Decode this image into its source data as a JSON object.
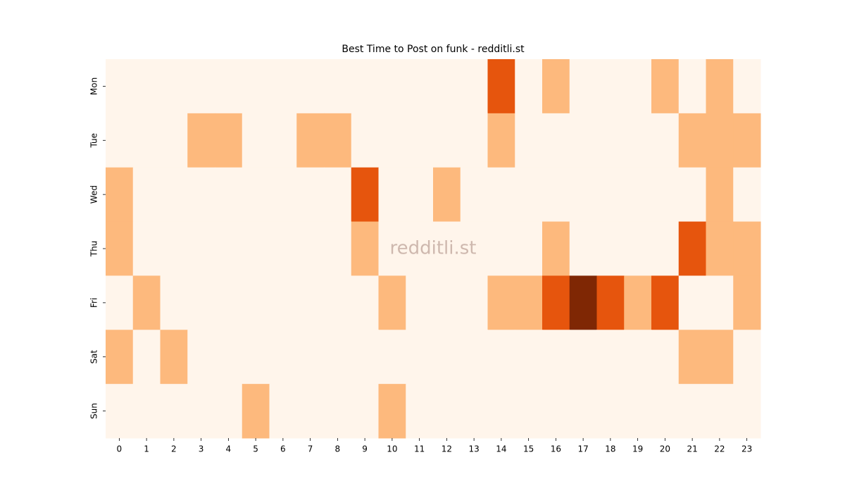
{
  "chart_data": {
    "type": "heatmap",
    "title": "Best Time to Post on funk - redditli.st",
    "watermark": "redditli.st",
    "x": [
      0,
      1,
      2,
      3,
      4,
      5,
      6,
      7,
      8,
      9,
      10,
      11,
      12,
      13,
      14,
      15,
      16,
      17,
      18,
      19,
      20,
      21,
      22,
      23
    ],
    "y": [
      "Mon",
      "Tue",
      "Wed",
      "Thu",
      "Fri",
      "Sat",
      "Sun"
    ],
    "values": [
      [
        0,
        0,
        0,
        0,
        0,
        0,
        0,
        0,
        0,
        0,
        0,
        0,
        0,
        0,
        2,
        0,
        1,
        0,
        0,
        0,
        1,
        0,
        1,
        0
      ],
      [
        0,
        0,
        0,
        1,
        1,
        0,
        0,
        1,
        1,
        0,
        0,
        0,
        0,
        0,
        1,
        0,
        0,
        0,
        0,
        0,
        0,
        1,
        1,
        1
      ],
      [
        1,
        0,
        0,
        0,
        0,
        0,
        0,
        0,
        0,
        2,
        0,
        0,
        1,
        0,
        0,
        0,
        0,
        0,
        0,
        0,
        0,
        0,
        1,
        0
      ],
      [
        1,
        0,
        0,
        0,
        0,
        0,
        0,
        0,
        0,
        1,
        0,
        0,
        0,
        0,
        0,
        0,
        1,
        0,
        0,
        0,
        0,
        2,
        1,
        1
      ],
      [
        0,
        1,
        0,
        0,
        0,
        0,
        0,
        0,
        0,
        0,
        1,
        0,
        0,
        0,
        1,
        1,
        2,
        3,
        2,
        1,
        2,
        0,
        0,
        1
      ],
      [
        1,
        0,
        1,
        0,
        0,
        0,
        0,
        0,
        0,
        0,
        0,
        0,
        0,
        0,
        0,
        0,
        0,
        0,
        0,
        0,
        0,
        1,
        1,
        0
      ],
      [
        0,
        0,
        0,
        0,
        0,
        1,
        0,
        0,
        0,
        0,
        1,
        0,
        0,
        0,
        0,
        0,
        0,
        0,
        0,
        0,
        0,
        0,
        0,
        0
      ]
    ],
    "colormap": [
      "#fff5eb",
      "#fdb97d",
      "#e6550d",
      "#7f2704"
    ]
  }
}
